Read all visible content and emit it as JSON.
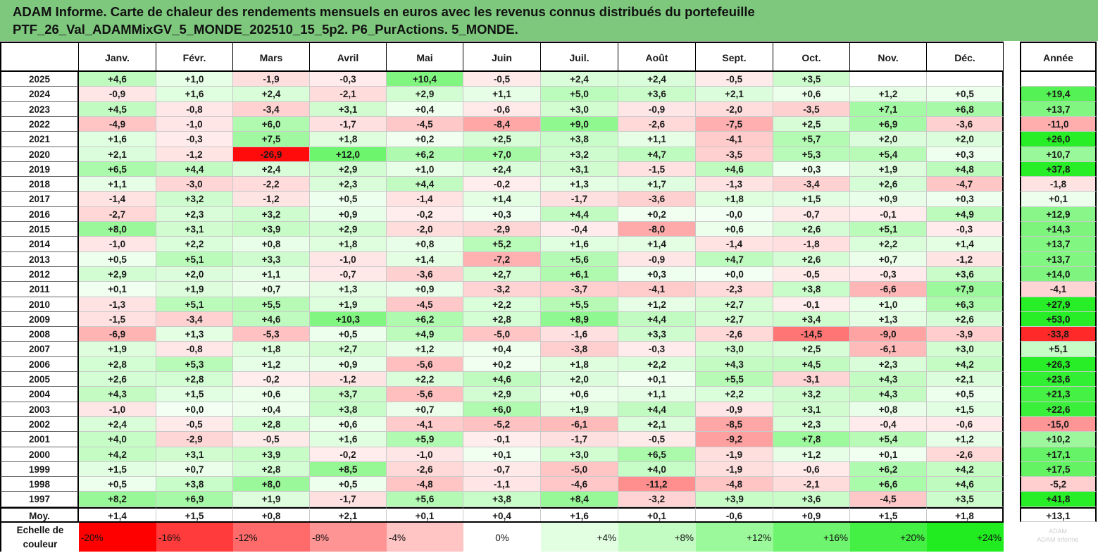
{
  "title": {
    "line1": "ADAM Informe. Carte de chaleur des rendements mensuels en euros avec les revenus connus distribués du portefeuille",
    "line2": "PTF_26_Val_ADAMMixGV_5_MONDE_202510_15_5p2. P6_PurActions. 5_MONDE."
  },
  "chart_data": {
    "type": "heatmap",
    "columns": [
      "Janv.",
      "Févr.",
      "Mars",
      "Avril",
      "Mai",
      "Juin",
      "Juil.",
      "Août",
      "Sept.",
      "Oct.",
      "Nov.",
      "Déc."
    ],
    "annual_label": "Année",
    "rows": [
      {
        "year": "2025",
        "months": [
          "+4,6",
          "+1,0",
          "-1,9",
          "-0,3",
          "+10,4",
          "-0,5",
          "+2,4",
          "+2,4",
          "-0,5",
          "+3,5",
          "",
          ""
        ],
        "annual": ""
      },
      {
        "year": "2024",
        "months": [
          "-0,9",
          "+1,6",
          "+2,4",
          "-2,1",
          "+2,9",
          "+1,1",
          "+5,0",
          "+3,6",
          "+2,1",
          "+0,6",
          "+1,2",
          "+0,5"
        ],
        "annual": "+19,4"
      },
      {
        "year": "2023",
        "months": [
          "+4,5",
          "-0,8",
          "-3,4",
          "+3,1",
          "+0,4",
          "-0,6",
          "+3,0",
          "-0,9",
          "-2,0",
          "-3,5",
          "+7,1",
          "+6,8"
        ],
        "annual": "+13,7"
      },
      {
        "year": "2022",
        "months": [
          "-4,9",
          "-1,0",
          "+6,0",
          "-1,7",
          "-4,5",
          "-8,4",
          "+9,0",
          "-2,6",
          "-7,5",
          "+2,5",
          "+6,9",
          "-3,6"
        ],
        "annual": "-11,0"
      },
      {
        "year": "2021",
        "months": [
          "+1,6",
          "-0,3",
          "+7,5",
          "+1,8",
          "+0,2",
          "+2,5",
          "+3,8",
          "+1,1",
          "-4,1",
          "+5,7",
          "+2,0",
          "+2,0"
        ],
        "annual": "+26,0"
      },
      {
        "year": "2020",
        "months": [
          "+2,1",
          "-1,2",
          "-26,9",
          "+12,0",
          "+6,2",
          "+7,0",
          "+3,2",
          "+4,7",
          "-3,5",
          "+5,3",
          "+5,4",
          "+0,3"
        ],
        "annual": "+10,7"
      },
      {
        "year": "2019",
        "months": [
          "+6,5",
          "+4,4",
          "+2,4",
          "+2,9",
          "+1,0",
          "+2,4",
          "+3,1",
          "-1,5",
          "+4,6",
          "+0,3",
          "+1,9",
          "+4,8"
        ],
        "annual": "+37,8"
      },
      {
        "year": "2018",
        "months": [
          "+1,1",
          "-3,0",
          "-2,2",
          "+2,3",
          "+4,4",
          "-0,2",
          "+1,3",
          "+1,7",
          "-1,3",
          "-3,4",
          "+2,6",
          "-4,7"
        ],
        "annual": "-1,8"
      },
      {
        "year": "2017",
        "months": [
          "-1,4",
          "+3,2",
          "-1,2",
          "+0,5",
          "-1,4",
          "+1,4",
          "-1,7",
          "-3,6",
          "+1,8",
          "+1,5",
          "+0,9",
          "+0,3"
        ],
        "annual": "+0,1"
      },
      {
        "year": "2016",
        "months": [
          "-2,7",
          "+2,3",
          "+3,2",
          "+0,9",
          "-0,2",
          "+0,3",
          "+4,4",
          "+0,2",
          "-0,0",
          "-0,7",
          "-0,1",
          "+4,9"
        ],
        "annual": "+12,9"
      },
      {
        "year": "2015",
        "months": [
          "+8,0",
          "+3,1",
          "+3,9",
          "+2,9",
          "-2,0",
          "-2,9",
          "-0,4",
          "-8,0",
          "+0,6",
          "+2,6",
          "+5,1",
          "-0,3"
        ],
        "annual": "+14,3"
      },
      {
        "year": "2014",
        "months": [
          "-1,0",
          "+2,2",
          "+0,8",
          "+1,8",
          "+0,8",
          "+5,2",
          "+1,6",
          "+1,4",
          "-1,4",
          "-1,8",
          "+2,2",
          "+1,4"
        ],
        "annual": "+13,7"
      },
      {
        "year": "2013",
        "months": [
          "+0,5",
          "+5,1",
          "+3,3",
          "-1,0",
          "+1,4",
          "-7,2",
          "+5,6",
          "-0,9",
          "+4,7",
          "+2,6",
          "+0,7",
          "-1,2"
        ],
        "annual": "+13,7"
      },
      {
        "year": "2012",
        "months": [
          "+2,9",
          "+2,0",
          "+1,1",
          "-0,7",
          "-3,6",
          "+2,7",
          "+6,1",
          "+0,3",
          "+0,0",
          "-0,5",
          "-0,3",
          "+3,6"
        ],
        "annual": "+14,0"
      },
      {
        "year": "2011",
        "months": [
          "+0,1",
          "+1,9",
          "+0,7",
          "+1,3",
          "+0,9",
          "-3,2",
          "-3,7",
          "-4,1",
          "-2,3",
          "+3,8",
          "-6,6",
          "+7,9"
        ],
        "annual": "-4,1"
      },
      {
        "year": "2010",
        "months": [
          "-1,3",
          "+5,1",
          "+5,5",
          "+1,9",
          "-4,5",
          "+2,2",
          "+5,5",
          "+1,2",
          "+2,7",
          "-0,1",
          "+1,0",
          "+6,3"
        ],
        "annual": "+27,9"
      },
      {
        "year": "2009",
        "months": [
          "-1,5",
          "-3,4",
          "+4,6",
          "+10,3",
          "+6,2",
          "+2,8",
          "+8,9",
          "+4,4",
          "+2,7",
          "+3,4",
          "+1,3",
          "+2,6"
        ],
        "annual": "+53,0"
      },
      {
        "year": "2008",
        "months": [
          "-6,9",
          "+1,3",
          "-5,3",
          "+0,5",
          "+4,9",
          "-5,0",
          "-1,6",
          "+3,3",
          "-2,6",
          "-14,5",
          "-9,0",
          "-3,9"
        ],
        "annual": "-33,8"
      },
      {
        "year": "2007",
        "months": [
          "+1,9",
          "-0,8",
          "+1,8",
          "+2,7",
          "+1,2",
          "+0,4",
          "-3,8",
          "-0,3",
          "+3,0",
          "+2,5",
          "-6,1",
          "+3,0"
        ],
        "annual": "+5,1"
      },
      {
        "year": "2006",
        "months": [
          "+2,8",
          "+5,3",
          "+1,2",
          "+0,9",
          "-5,6",
          "+0,2",
          "+1,8",
          "+2,2",
          "+4,3",
          "+4,5",
          "+2,3",
          "+4,2"
        ],
        "annual": "+26,3"
      },
      {
        "year": "2005",
        "months": [
          "+2,6",
          "+2,8",
          "-0,2",
          "-1,2",
          "+2,2",
          "+4,6",
          "+2,0",
          "+0,1",
          "+5,5",
          "-3,1",
          "+4,3",
          "+2,1"
        ],
        "annual": "+23,6"
      },
      {
        "year": "2004",
        "months": [
          "+4,3",
          "+1,5",
          "+0,6",
          "+3,7",
          "-5,6",
          "+2,9",
          "+0,6",
          "+1,1",
          "+2,2",
          "+3,2",
          "+4,3",
          "+0,5"
        ],
        "annual": "+21,3"
      },
      {
        "year": "2003",
        "months": [
          "-1,0",
          "+0,0",
          "+0,4",
          "+3,8",
          "+0,7",
          "+6,0",
          "+1,9",
          "+4,4",
          "-0,9",
          "+3,1",
          "+0,8",
          "+1,5"
        ],
        "annual": "+22,6"
      },
      {
        "year": "2002",
        "months": [
          "+2,4",
          "-0,5",
          "+2,8",
          "+0,6",
          "-4,1",
          "-5,2",
          "-6,1",
          "+2,1",
          "-8,5",
          "+2,3",
          "-0,4",
          "-0,6"
        ],
        "annual": "-15,0"
      },
      {
        "year": "2001",
        "months": [
          "+4,0",
          "-2,9",
          "-0,5",
          "+1,6",
          "+5,9",
          "-0,1",
          "-1,7",
          "-0,5",
          "-9,2",
          "+7,8",
          "+5,4",
          "+1,2"
        ],
        "annual": "+10,2"
      },
      {
        "year": "2000",
        "months": [
          "+4,2",
          "+3,1",
          "+3,9",
          "-0,2",
          "-1,0",
          "+0,1",
          "+3,0",
          "+6,5",
          "-1,9",
          "+1,2",
          "+0,1",
          "-2,6"
        ],
        "annual": "+17,1"
      },
      {
        "year": "1999",
        "months": [
          "+1,5",
          "+0,7",
          "+2,8",
          "+8,5",
          "-2,6",
          "-0,7",
          "-5,0",
          "+4,0",
          "-1,9",
          "-0,6",
          "+6,2",
          "+4,2"
        ],
        "annual": "+17,5"
      },
      {
        "year": "1998",
        "months": [
          "+0,5",
          "+3,8",
          "+8,0",
          "+0,5",
          "-4,8",
          "-1,1",
          "-4,6",
          "-11,2",
          "-4,8",
          "-2,1",
          "+6,6",
          "+4,6"
        ],
        "annual": "-5,2"
      },
      {
        "year": "1997",
        "months": [
          "+8,2",
          "+6,9",
          "+1,9",
          "-1,7",
          "+5,6",
          "+3,8",
          "+8,4",
          "-3,2",
          "+3,9",
          "+3,6",
          "-4,5",
          "+3,5"
        ],
        "annual": "+41,8"
      },
      {
        "year": "Moy.",
        "months": [
          "+1,4",
          "+1,5",
          "+0,8",
          "+2,1",
          "+0,1",
          "+0,4",
          "+1,6",
          "+0,1",
          "-0,6",
          "+0,9",
          "+1,5",
          "+1,8"
        ],
        "annual": "+13,1"
      }
    ],
    "color_scale": {
      "label": "Echelle de couleur",
      "stops": [
        "-20%",
        "-16%",
        "-12%",
        "-8%",
        "-4%",
        "0%",
        "+4%",
        "+8%",
        "+12%",
        "+16%",
        "+20%",
        "+24%"
      ],
      "colors": [
        "#ff0000",
        "#ff3b3b",
        "#ff6a6a",
        "#ff9494",
        "#ffc4c4",
        "#ffffff",
        "#e2ffe2",
        "#c2fcc2",
        "#9bf89b",
        "#6ef46e",
        "#45f045",
        "#20ec20"
      ]
    }
  }
}
